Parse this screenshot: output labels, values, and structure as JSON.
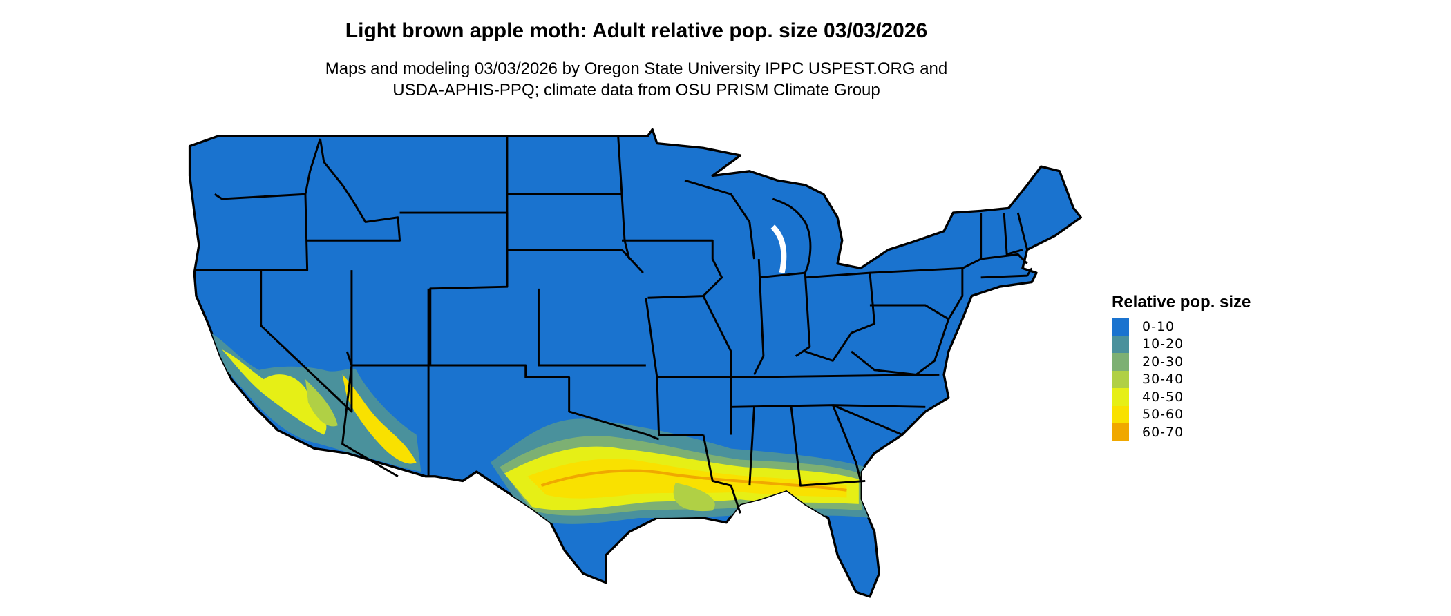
{
  "title": "Light brown apple moth: Adult relative pop. size 03/03/2026",
  "subtitle_line1": "Maps and modeling 03/03/2026 by Oregon State University IPPC USPEST.ORG and",
  "subtitle_line2": "USDA-APHIS-PPQ; climate data from OSU PRISM Climate Group",
  "legend": {
    "title": "Relative pop. size",
    "items": [
      {
        "label": "0-10",
        "color": "#1a73cf"
      },
      {
        "label": "10-20",
        "color": "#4a919c"
      },
      {
        "label": "20-30",
        "color": "#7db073"
      },
      {
        "label": "30-40",
        "color": "#b0d045"
      },
      {
        "label": "40-50",
        "color": "#e6ef16"
      },
      {
        "label": "50-60",
        "color": "#f9e100"
      },
      {
        "label": "60-70",
        "color": "#f0a800"
      }
    ]
  },
  "map": {
    "region": "Contiguous United States",
    "base_color": "#1a73cf",
    "border_color": "#000000"
  }
}
